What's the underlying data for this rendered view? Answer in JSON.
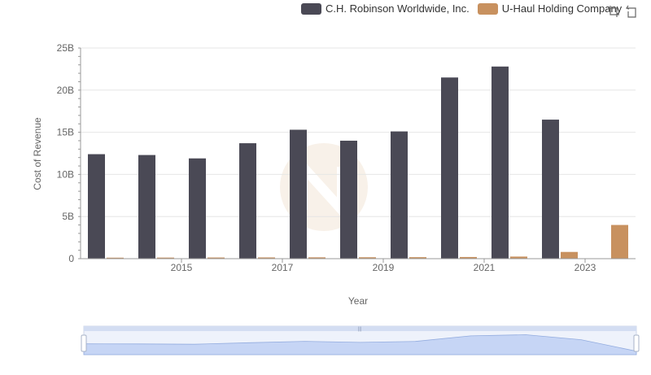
{
  "chart_data": {
    "type": "bar",
    "xlabel": "Year",
    "ylabel": "Cost of Revenue",
    "categories": [
      "2014",
      "2015",
      "2016",
      "2017",
      "2018",
      "2019",
      "2020",
      "2021",
      "2022",
      "2023",
      "2024"
    ],
    "x_tick_labels": [
      "2015",
      "2017",
      "2019",
      "2021",
      "2023"
    ],
    "y_tick_labels": [
      "0",
      "5B",
      "10B",
      "15B",
      "20B",
      "25B"
    ],
    "ylim": [
      0,
      25
    ],
    "y_unit": "B",
    "series": [
      {
        "name": "C.H. Robinson Worldwide, Inc.",
        "color": "#4a4955",
        "values": [
          12.4,
          12.3,
          11.9,
          13.7,
          15.3,
          14.0,
          15.1,
          21.5,
          22.8,
          16.5,
          null
        ]
      },
      {
        "name": "U-Haul Holding Company",
        "color": "#c8915f",
        "values": [
          0.12,
          0.13,
          0.14,
          0.15,
          0.16,
          0.17,
          0.18,
          0.2,
          0.25,
          0.8,
          4.0
        ]
      }
    ],
    "legend_position": "top-right",
    "grid": true
  },
  "toolbox": {
    "zoom_icon": "zoom-select-icon",
    "restore_icon": "restore-icon"
  },
  "data_zoom": {
    "start_percent": 0,
    "end_percent": 100
  }
}
